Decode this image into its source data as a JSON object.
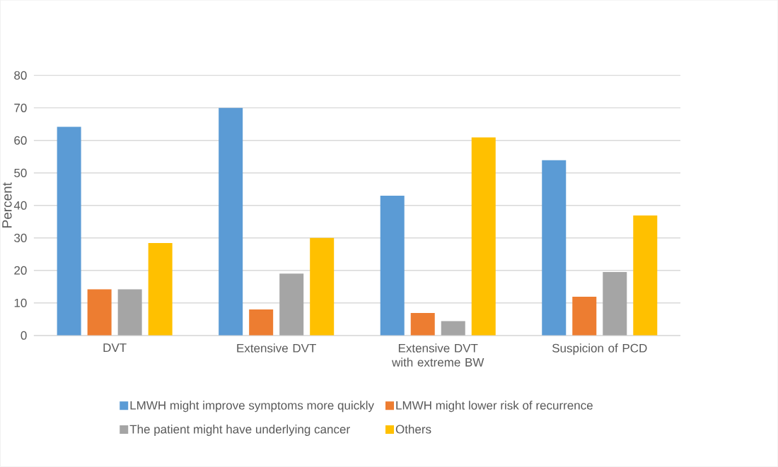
{
  "chart_data": {
    "type": "bar",
    "ylabel": "Percent",
    "categories": [
      "DVT",
      "Extensive DVT",
      "Extensive DVT with extreme BW",
      "Suspicion of PCD"
    ],
    "series": [
      {
        "name": "LMWH might improve symptoms more quickly",
        "color": "#5b9bd5",
        "values": [
          64.2,
          70,
          43,
          53.9
        ]
      },
      {
        "name": "LMWH might lower risk of recurrence",
        "color": "#ed7d31",
        "values": [
          14.2,
          8,
          6.9,
          11.9
        ]
      },
      {
        "name": "The patient might have underlying cancer",
        "color": "#a5a5a5",
        "values": [
          14.2,
          19,
          4.4,
          19.5
        ]
      },
      {
        "name": "Others",
        "color": "#ffc000",
        "values": [
          28.4,
          30,
          60.9,
          36.9
        ]
      }
    ],
    "ylim": [
      0,
      80
    ],
    "yticks": [
      0,
      10,
      20,
      30,
      40,
      50,
      60,
      70,
      80
    ],
    "grid": "y",
    "legend": "bottom"
  }
}
